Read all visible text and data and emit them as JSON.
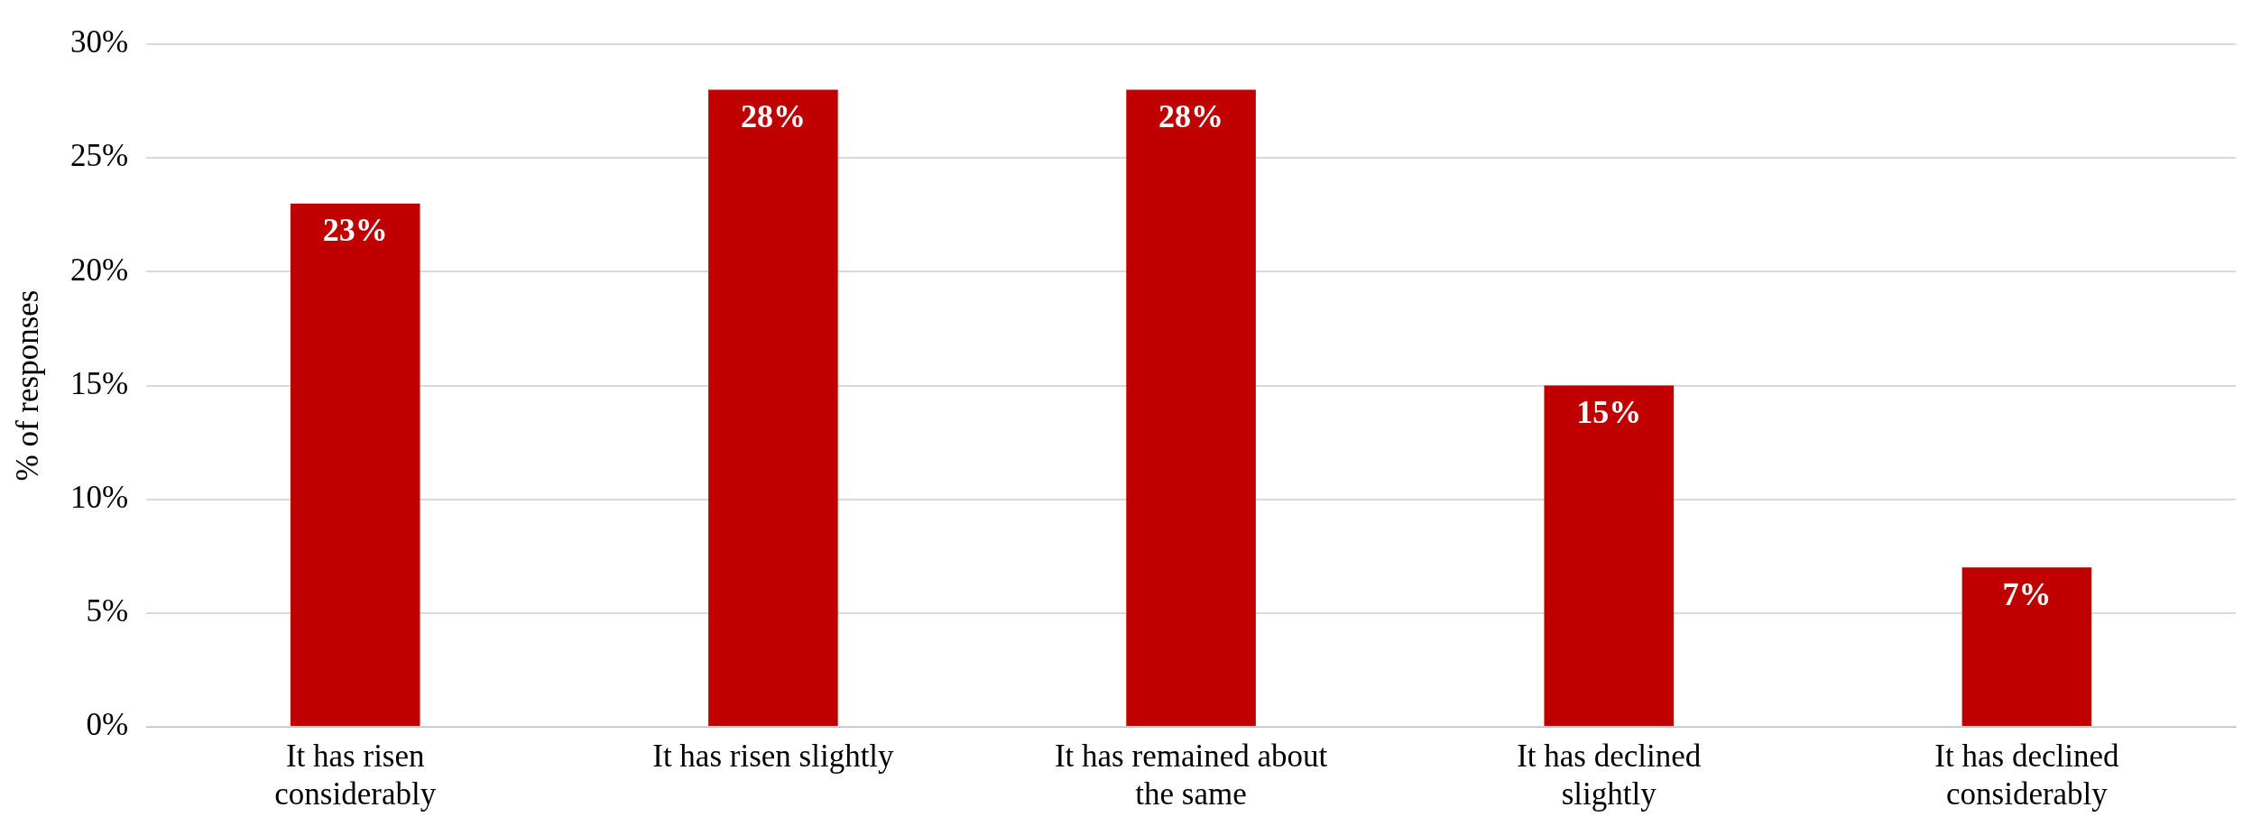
{
  "chart_data": {
    "type": "bar",
    "ylabel": "% of responses",
    "categories": [
      "It has risen considerably",
      "It has risen slightly",
      "It has remained about the same",
      "It has declined slightly",
      "It has declined considerably"
    ],
    "values": [
      23,
      28,
      28,
      15,
      7
    ],
    "color": "#c00000",
    "value_labels": [
      "23%",
      "28%",
      "28%",
      "15%",
      "7%"
    ],
    "ylim": [
      0,
      30
    ],
    "yticks": [
      {
        "value": 0,
        "label": "0%"
      },
      {
        "value": 5,
        "label": "5%"
      },
      {
        "value": 10,
        "label": "10%"
      },
      {
        "value": 15,
        "label": "15%"
      },
      {
        "value": 20,
        "label": "20%"
      },
      {
        "value": 25,
        "label": "25%"
      },
      {
        "value": 30,
        "label": "30%"
      }
    ],
    "grid": "y"
  }
}
